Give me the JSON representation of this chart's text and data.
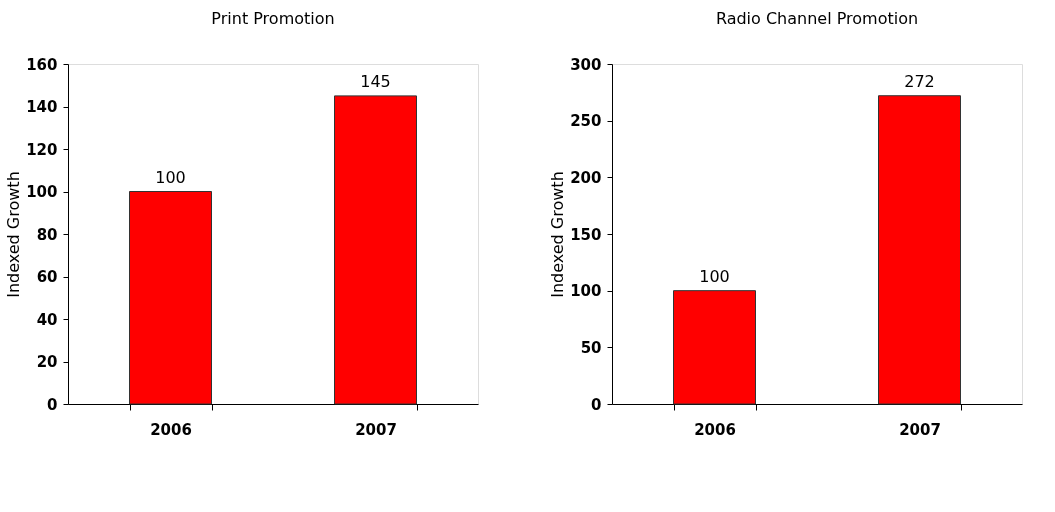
{
  "chart_data": [
    {
      "type": "bar",
      "title": "Print Promotion",
      "ylabel": "Indexed Growth",
      "categories": [
        "2006",
        "2007"
      ],
      "values": [
        100,
        145
      ],
      "color": "#ff0000",
      "ylim": [
        0,
        160
      ],
      "yticks": [
        0,
        20,
        40,
        60,
        80,
        100,
        120,
        140,
        160
      ],
      "grid": false,
      "data_labels": true
    },
    {
      "type": "bar",
      "title": "Radio Channel Promotion",
      "ylabel": "Indexed Growth",
      "categories": [
        "2006",
        "2007"
      ],
      "values": [
        100,
        272
      ],
      "color": "#ff0000",
      "ylim": [
        0,
        300
      ],
      "yticks": [
        0,
        50,
        100,
        150,
        200,
        250,
        300
      ],
      "grid": false,
      "data_labels": true
    }
  ]
}
